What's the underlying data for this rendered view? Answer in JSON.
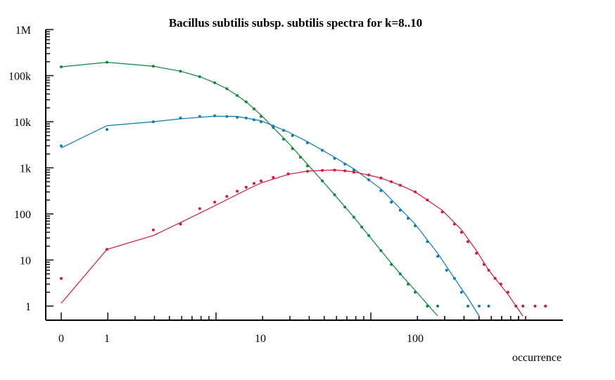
{
  "chart_data": {
    "type": "scatter",
    "title": "Bacillus subtilis subsp. subtilis spectra for k=8..10",
    "xlabel": "occurrence",
    "ylabel": "",
    "x_scale": "log(x+1)",
    "y_scale": "log",
    "xlim": [
      0,
      1000
    ],
    "ylim": [
      1,
      1000000
    ],
    "x_ticks": [
      {
        "value": 0,
        "label": "0"
      },
      {
        "value": 1,
        "label": "1"
      },
      {
        "value": 10,
        "label": "10"
      },
      {
        "value": 100,
        "label": "100"
      }
    ],
    "y_ticks": [
      {
        "value": 1,
        "label": "1"
      },
      {
        "value": 10,
        "label": "10"
      },
      {
        "value": 100,
        "label": "100"
      },
      {
        "value": 1000,
        "label": "1k"
      },
      {
        "value": 10000,
        "label": "10k"
      },
      {
        "value": 100000,
        "label": "100k"
      },
      {
        "value": 1000000,
        "label": "1M"
      }
    ],
    "grid": false,
    "legend": "none",
    "series": [
      {
        "color": "#0a8a3a",
        "points": [
          [
            0,
            155000
          ],
          [
            1,
            195000
          ],
          [
            2,
            160000
          ],
          [
            3,
            125000
          ],
          [
            4,
            95000
          ],
          [
            5,
            70000
          ],
          [
            6,
            52000
          ],
          [
            7,
            37000
          ],
          [
            8,
            27000
          ],
          [
            9,
            19000
          ],
          [
            10,
            13000
          ],
          [
            12,
            7500
          ],
          [
            14,
            4200
          ],
          [
            16,
            2600
          ],
          [
            18,
            1700
          ],
          [
            20,
            1100
          ],
          [
            25,
            520
          ],
          [
            30,
            260
          ],
          [
            35,
            140
          ],
          [
            40,
            85
          ],
          [
            45,
            52
          ],
          [
            50,
            34
          ],
          [
            60,
            16
          ],
          [
            70,
            8
          ],
          [
            80,
            5
          ],
          [
            90,
            3
          ],
          [
            100,
            2
          ],
          [
            120,
            1
          ],
          [
            140,
            1
          ]
        ],
        "fit": [
          [
            0,
            155000
          ],
          [
            1,
            195000
          ],
          [
            2,
            160000
          ],
          [
            3,
            125000
          ],
          [
            4,
            95000
          ],
          [
            5,
            70000
          ],
          [
            6,
            52000
          ],
          [
            7,
            37000
          ],
          [
            8,
            27000
          ],
          [
            10,
            14000
          ],
          [
            12,
            7500
          ],
          [
            15,
            3500
          ],
          [
            20,
            1200
          ],
          [
            25,
            520
          ],
          [
            30,
            260
          ],
          [
            40,
            85
          ],
          [
            50,
            34
          ],
          [
            60,
            16
          ],
          [
            80,
            5
          ],
          [
            100,
            2.2
          ],
          [
            120,
            1.1
          ],
          [
            140,
            0.6
          ]
        ]
      },
      {
        "color": "#0a7ab8",
        "points": [
          [
            0,
            3000
          ],
          [
            1,
            6800
          ],
          [
            2,
            10000
          ],
          [
            3,
            12000
          ],
          [
            4,
            13000
          ],
          [
            5,
            13500
          ],
          [
            6,
            13000
          ],
          [
            7,
            12500
          ],
          [
            8,
            12000
          ],
          [
            9,
            11000
          ],
          [
            10,
            10000
          ],
          [
            12,
            8000
          ],
          [
            14,
            6500
          ],
          [
            16,
            5000
          ],
          [
            20,
            3500
          ],
          [
            25,
            2400
          ],
          [
            30,
            1600
          ],
          [
            35,
            1200
          ],
          [
            40,
            900
          ],
          [
            50,
            550
          ],
          [
            60,
            320
          ],
          [
            70,
            180
          ],
          [
            80,
            120
          ],
          [
            90,
            80
          ],
          [
            100,
            55
          ],
          [
            120,
            25
          ],
          [
            140,
            12
          ],
          [
            160,
            6
          ],
          [
            180,
            4
          ],
          [
            200,
            2
          ],
          [
            220,
            1
          ],
          [
            260,
            1
          ],
          [
            300,
            1
          ]
        ],
        "fit": [
          [
            0,
            2700
          ],
          [
            1,
            8200
          ],
          [
            2,
            10000
          ],
          [
            3,
            11600
          ],
          [
            5,
            13200
          ],
          [
            7,
            13000
          ],
          [
            10,
            10500
          ],
          [
            15,
            6000
          ],
          [
            20,
            3700
          ],
          [
            30,
            1700
          ],
          [
            40,
            950
          ],
          [
            60,
            350
          ],
          [
            80,
            130
          ],
          [
            100,
            60
          ],
          [
            140,
            14
          ],
          [
            180,
            4
          ],
          [
            220,
            1.5
          ],
          [
            260,
            0.6
          ]
        ]
      },
      {
        "color": "#d4173a",
        "points": [
          [
            0,
            4
          ],
          [
            1,
            17
          ],
          [
            2,
            45
          ],
          [
            3,
            60
          ],
          [
            4,
            130
          ],
          [
            5,
            180
          ],
          [
            6,
            240
          ],
          [
            7,
            310
          ],
          [
            8,
            380
          ],
          [
            9,
            460
          ],
          [
            10,
            520
          ],
          [
            12,
            620
          ],
          [
            15,
            740
          ],
          [
            20,
            840
          ],
          [
            25,
            880
          ],
          [
            30,
            890
          ],
          [
            35,
            860
          ],
          [
            40,
            800
          ],
          [
            50,
            700
          ],
          [
            60,
            600
          ],
          [
            70,
            500
          ],
          [
            80,
            420
          ],
          [
            100,
            300
          ],
          [
            120,
            200
          ],
          [
            150,
            110
          ],
          [
            180,
            60
          ],
          [
            200,
            40
          ],
          [
            220,
            25
          ],
          [
            250,
            14
          ],
          [
            280,
            8
          ],
          [
            300,
            6
          ],
          [
            330,
            4
          ],
          [
            360,
            3
          ],
          [
            400,
            2
          ],
          [
            450,
            1
          ],
          [
            500,
            1
          ],
          [
            600,
            1
          ],
          [
            700,
            1
          ]
        ],
        "fit": [
          [
            0,
            1.15
          ],
          [
            1,
            17
          ],
          [
            2,
            34
          ],
          [
            3,
            65
          ],
          [
            5,
            150
          ],
          [
            8,
            330
          ],
          [
            10,
            470
          ],
          [
            15,
            720
          ],
          [
            20,
            850
          ],
          [
            30,
            900
          ],
          [
            40,
            820
          ],
          [
            60,
            600
          ],
          [
            80,
            420
          ],
          [
            100,
            300
          ],
          [
            150,
            120
          ],
          [
            200,
            45
          ],
          [
            250,
            16
          ],
          [
            300,
            6
          ],
          [
            400,
            1.8
          ],
          [
            500,
            0.6
          ]
        ]
      }
    ]
  }
}
